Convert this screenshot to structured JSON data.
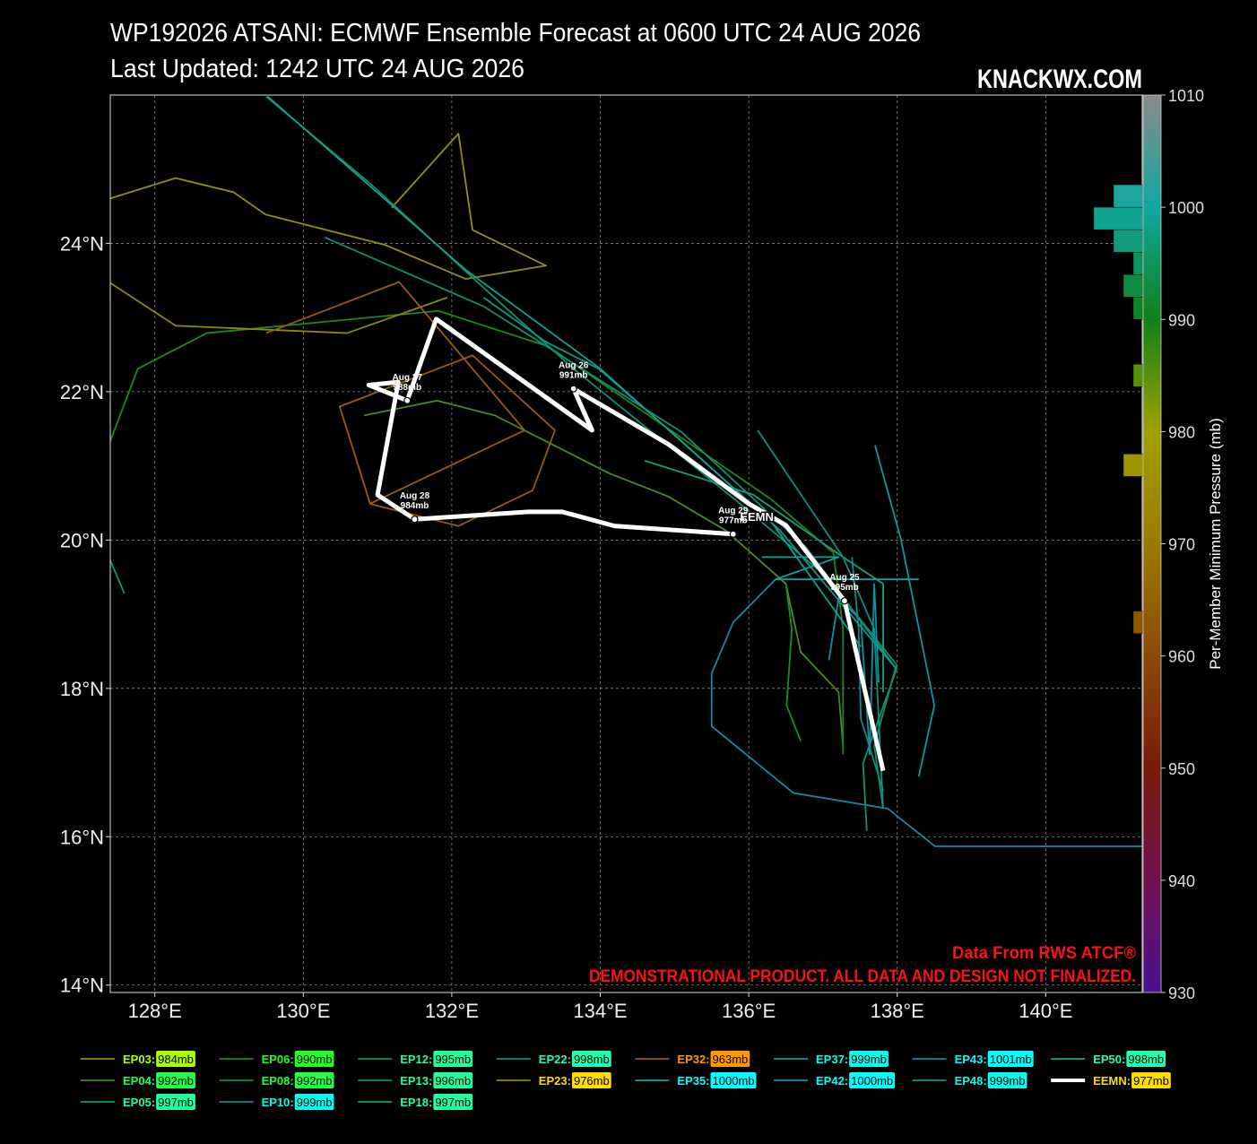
{
  "chart_data": {
    "type": "track",
    "title": "WP192026 ATSANI: ECMWF Ensemble Forecast at 0600 UTC 24 AUG 2026",
    "subtitle": "Last Updated: 1242 UTC 24 AUG 2026",
    "watermark": "KNACKWX.COM",
    "source": "Data From RWS ATCF®",
    "disclaimer": "DEMONSTRATIONAL PRODUCT. ALL DATA AND DESIGN NOT FINALIZED.",
    "xlim": [
      127.4,
      141.3
    ],
    "ylim": [
      13.9,
      26.0
    ],
    "xticks": [
      {
        "value": 128,
        "label": "128°E"
      },
      {
        "value": 130,
        "label": "130°E"
      },
      {
        "value": 132,
        "label": "132°E"
      },
      {
        "value": 134,
        "label": "134°E"
      },
      {
        "value": 136,
        "label": "136°E"
      },
      {
        "value": 138,
        "label": "138°E"
      },
      {
        "value": 140,
        "label": "140°E"
      }
    ],
    "yticks": [
      {
        "value": 14,
        "label": "14°N"
      },
      {
        "value": 16,
        "label": "16°N"
      },
      {
        "value": 18,
        "label": "18°N"
      },
      {
        "value": 20,
        "label": "20°N"
      },
      {
        "value": 22,
        "label": "22°N"
      },
      {
        "value": 24,
        "label": "24°N"
      }
    ],
    "grid": true,
    "colorbar": {
      "label": "Per-Member Minimum Pressure (mb)",
      "range": [
        930,
        1010
      ],
      "ticks": [
        930,
        940,
        950,
        960,
        970,
        980,
        990,
        1000,
        1010
      ],
      "colormap": [
        "#4a1290",
        "#701050",
        "#7a1a0a",
        "#8a4a08",
        "#9a7a00",
        "#a0a000",
        "#10801a",
        "#10a8a0",
        "#8a8a8a"
      ],
      "histogram": {
        "bins": [
          962,
          964,
          966,
          968,
          970,
          972,
          974,
          976,
          978,
          980,
          982,
          984,
          986,
          988,
          990,
          992,
          994,
          996,
          998,
          1000,
          1002
        ],
        "counts": [
          1,
          0,
          0,
          0,
          0,
          0,
          0,
          2,
          0,
          0,
          0,
          1,
          0,
          0,
          1,
          2,
          1,
          3,
          5,
          3
        ]
      }
    },
    "series": [
      {
        "name": "EP03:",
        "pressure_label": "984mb",
        "color": "#8f8f12",
        "label_color": "#aaff00",
        "lon": [
          127.38,
          128.28,
          129.06,
          129.49,
          131.1,
          132.19,
          133.27,
          132.28,
          132.09,
          131.19
        ],
        "lat": [
          24.6,
          24.88,
          24.69,
          24.39,
          23.98,
          23.52,
          23.7,
          24.18,
          25.48,
          24.48
        ]
      },
      {
        "name": "EP04:",
        "pressure_label": "992mb",
        "color": "#4e8a18",
        "label_color": "#22ff44",
        "lon": [
          130.82,
          131.8,
          132.58,
          134.12,
          134.91,
          135.69,
          136.5,
          136.7,
          137.21,
          137.27
        ],
        "lat": [
          21.68,
          21.88,
          21.68,
          20.9,
          20.59,
          20.13,
          19.41,
          18.49,
          17.95,
          17.23
        ]
      },
      {
        "name": "EP05:",
        "pressure_label": "997mb",
        "color": "#129a5a",
        "label_color": "#20ffa0",
        "lon": [
          127.38,
          127.59
        ],
        "lat": [
          19.77,
          19.28
        ]
      },
      {
        "name": "EP06:",
        "pressure_label": "990mb",
        "color": "#1a8a1a",
        "label_color": "#22ff22",
        "lon": [
          127.38,
          127.77,
          128.7,
          131.82,
          133.3,
          136.3,
          137.14,
          137.27,
          137.27
        ],
        "lat": [
          21.28,
          22.31,
          22.79,
          23.09,
          22.61,
          20.55,
          19.83,
          18.8,
          17.11
        ]
      },
      {
        "name": "EP08:",
        "pressure_label": "992mb",
        "color": "#158f30",
        "label_color": "#22ff44",
        "lon": [
          136.5,
          136.58,
          136.51,
          136.7
        ],
        "lat": [
          19.41,
          18.8,
          17.77,
          17.29
        ]
      },
      {
        "name": "EP10:",
        "pressure_label": "999mb",
        "color": "#108a8a",
        "label_color": "#00ffee",
        "lon": [
          137.39,
          137.48,
          137.51,
          137.81
        ],
        "lat": [
          19.77,
          18.8,
          17.59,
          16.62
        ]
      },
      {
        "name": "EP12:",
        "pressure_label": "995mb",
        "color": "#10906a",
        "label_color": "#20ff99",
        "lon": [
          129.5,
          130.92,
          132.43,
          133.64,
          135.81,
          137.02,
          137.99,
          137.69,
          137.81
        ],
        "lat": [
          25.98,
          24.79,
          23.4,
          22.31,
          20.55,
          19.53,
          18.32,
          17.23,
          16.38
        ]
      },
      {
        "name": "EP13:",
        "pressure_label": "996mb",
        "color": "#109070",
        "label_color": "#20ff99",
        "lon": [
          130.29,
          132.43,
          135.09,
          136.78,
          137.99,
          137.54,
          137.59
        ],
        "lat": [
          24.08,
          23.15,
          21.46,
          19.89,
          18.26,
          16.99,
          16.08
        ]
      },
      {
        "name": "EP18:",
        "pressure_label": "997mb",
        "color": "#10a080",
        "label_color": "#20ffa0",
        "lon": [
          134.6,
          136.06,
          137.27,
          137.81,
          137.81
        ],
        "lat": [
          21.07,
          20.61,
          19.77,
          19.41,
          17.95
        ]
      },
      {
        "name": "EP22:",
        "pressure_label": "998mb",
        "color": "#109080",
        "label_color": "#20ffb0",
        "lon": [
          136.12,
          137.27,
          137.69,
          137.81
        ],
        "lat": [
          21.48,
          19.77,
          18.8,
          16.38
        ]
      },
      {
        "name": "EP23:",
        "pressure_label": "976mb",
        "color": "#8a8a10",
        "label_color": "#ffdd00",
        "lon": [
          127.38,
          128.28,
          130.59,
          131.94
        ],
        "lat": [
          23.48,
          22.89,
          22.79,
          23.27
        ]
      },
      {
        "name": "EP32:",
        "pressure_label": "963mb",
        "color": "#9a5a10",
        "label_color": "#ff9900",
        "lon": [
          129.5,
          131.29,
          132.98,
          130.9,
          130.49,
          132.28,
          133.39,
          133.09,
          132.09,
          130.89
        ],
        "lat": [
          22.79,
          23.48,
          21.48,
          20.49,
          21.8,
          22.49,
          21.48,
          20.67,
          20.19,
          20.49
        ]
      },
      {
        "name": "EP35:",
        "pressure_label": "1000mb",
        "color": "#10a0a0",
        "label_color": "#00ffff",
        "lon": [
          136.18,
          137.21,
          136.36,
          138.29
        ],
        "lat": [
          19.77,
          19.77,
          19.47,
          19.47
        ]
      },
      {
        "name": "EP37:",
        "pressure_label": "999mb",
        "color": "#109898",
        "label_color": "#00ffee",
        "lon": [
          137.7,
          138.05,
          138.5,
          138.29
        ],
        "lat": [
          21.28,
          20.01,
          17.77,
          16.81
        ]
      },
      {
        "name": "EP42:",
        "pressure_label": "1000mb",
        "color": "#1090a0",
        "label_color": "#00ffff",
        "lon": [
          137.08,
          137.21,
          137.51,
          137.63,
          137.69,
          137.75
        ],
        "lat": [
          18.38,
          19.22,
          18.92,
          17.11,
          19.41,
          18.08
        ]
      },
      {
        "name": "EP43:",
        "pressure_label": "1001mb",
        "color": "#1888a0",
        "label_color": "#00ffff",
        "lon": [
          136.36,
          135.79,
          135.5,
          135.5,
          136.6,
          137.87,
          138.51,
          141.31
        ],
        "lat": [
          19.47,
          18.89,
          18.2,
          17.49,
          16.59,
          16.38,
          15.87,
          15.87
        ]
      },
      {
        "name": "EP48:",
        "pressure_label": "999mb",
        "color": "#10988a",
        "label_color": "#00ffee",
        "lon": [
          132.43,
          133.27,
          133.98,
          135.09,
          136.42,
          137.99
        ],
        "lat": [
          23.27,
          22.67,
          22.31,
          21.34,
          20.13,
          18.26
        ]
      },
      {
        "name": "EP50:",
        "pressure_label": "998mb",
        "color": "#10a090",
        "label_color": "#20ffb0",
        "lon": [
          129.52,
          132.19,
          134.0,
          136.3,
          137.51
        ],
        "lat": [
          25.98,
          23.64,
          22.31,
          20.25,
          18.56
        ]
      },
      {
        "name": "EEMN:",
        "pressure_label": "977mb",
        "color": "#ffffff",
        "label_color": "#ffdd00",
        "mean": true,
        "lon": [
          137.81,
          137.29,
          136.5,
          136.0,
          134.92,
          133.64,
          133.89,
          131.79,
          131.4,
          130.88,
          131.28,
          131.0,
          131.5,
          133.03,
          133.49,
          134.19,
          135.79
        ],
        "lat": [
          16.89,
          19.18,
          20.2,
          20.49,
          21.29,
          22.04,
          21.48,
          22.98,
          21.88,
          22.09,
          22.13,
          20.61,
          20.28,
          20.38,
          20.38,
          20.19,
          20.08
        ]
      }
    ],
    "mean_label": "EEMN",
    "annotations": [
      {
        "date": "Aug 25",
        "pressure_label": "995mb",
        "lon": 137.29,
        "lat": 19.18
      },
      {
        "date": "Aug 26",
        "pressure_label": "991mb",
        "lon": 133.64,
        "lat": 22.04
      },
      {
        "date": "Aug 27",
        "pressure_label": "988mb",
        "lon": 131.4,
        "lat": 21.88
      },
      {
        "date": "Aug 28",
        "pressure_label": "984mb",
        "lon": 131.5,
        "lat": 20.28
      },
      {
        "date": "Aug 29",
        "pressure_label": "977mb",
        "lon": 135.79,
        "lat": 20.08
      }
    ]
  }
}
